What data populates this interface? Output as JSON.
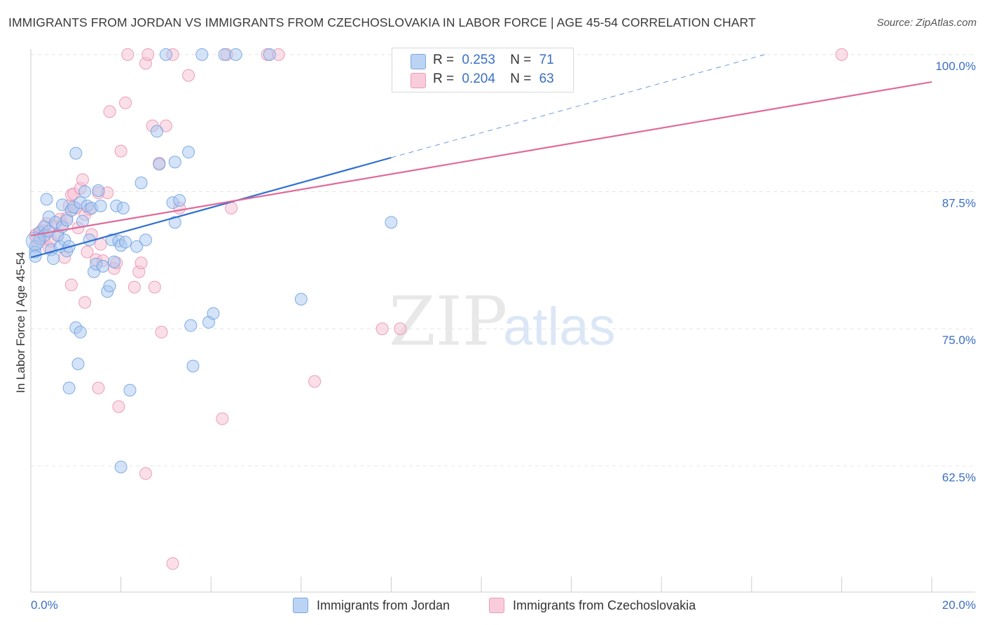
{
  "header": {
    "title": "IMMIGRANTS FROM JORDAN VS IMMIGRANTS FROM CZECHOSLOVAKIA IN LABOR FORCE | AGE 45-54 CORRELATION CHART",
    "source": "Source: ZipAtlas.com"
  },
  "watermark": {
    "zip": "ZIP",
    "atlas": "atlas"
  },
  "legend": {
    "r_label": "R =",
    "n_label": "N =",
    "series": [
      {
        "name": "Immigrants from Jordan",
        "r": "0.253",
        "n": "71"
      },
      {
        "name": "Immigrants from Czechoslovakia",
        "r": "0.204",
        "n": "63"
      }
    ]
  },
  "colors": {
    "blue_fill": "#a9c8f0",
    "blue_stroke": "#6b9fe0",
    "blue_line": "#2f6fd0",
    "pink_fill": "#f6bfd1",
    "pink_stroke": "#e98fb0",
    "pink_line": "#e06a98",
    "axis_text": "#3a6fc4",
    "grid": "#e4e4e4"
  },
  "chart_data": {
    "type": "scatter",
    "title": "IMMIGRANTS FROM JORDAN VS IMMIGRANTS FROM CZECHOSLOVAKIA IN LABOR FORCE | AGE 45-54 CORRELATION CHART",
    "xlabel": "",
    "ylabel": "In Labor Force | Age 45-54",
    "xlim": [
      0,
      20
    ],
    "ylim": [
      51,
      100.5
    ],
    "x_tick_labels": [
      "0.0%",
      "20.0%"
    ],
    "y_ticks": [
      62.5,
      75.0,
      87.5,
      100.0
    ],
    "y_tick_labels": [
      "62.5%",
      "75.0%",
      "87.5%",
      "100.0%"
    ],
    "series": [
      {
        "name": "Immigrants from Jordan",
        "trend": {
          "x0": 0.0,
          "y0": 81.5,
          "x1": 8.0,
          "y1": 90.6,
          "dash_to_x": 16.3,
          "dash_to_y": 100.0
        },
        "points": [
          [
            0.1,
            82.5
          ],
          [
            0.1,
            82.0
          ],
          [
            0.1,
            81.6
          ],
          [
            0.2,
            83.8
          ],
          [
            0.2,
            83.2
          ],
          [
            0.3,
            84.3
          ],
          [
            0.3,
            83.5
          ],
          [
            0.35,
            86.8
          ],
          [
            0.4,
            85.2
          ],
          [
            0.4,
            83.9
          ],
          [
            0.45,
            82.2
          ],
          [
            0.5,
            81.4
          ],
          [
            0.55,
            84.7
          ],
          [
            0.6,
            83.5
          ],
          [
            0.65,
            82.5
          ],
          [
            0.7,
            86.3
          ],
          [
            0.7,
            84.3
          ],
          [
            0.75,
            83.1
          ],
          [
            0.8,
            84.9
          ],
          [
            0.8,
            82.1
          ],
          [
            0.85,
            82.5
          ],
          [
            0.9,
            85.8
          ],
          [
            0.95,
            86.1
          ],
          [
            1.0,
            91.0
          ],
          [
            1.1,
            86.5
          ],
          [
            1.15,
            84.8
          ],
          [
            1.2,
            87.5
          ],
          [
            1.25,
            86.2
          ],
          [
            1.3,
            83.1
          ],
          [
            1.35,
            86.0
          ],
          [
            1.4,
            80.2
          ],
          [
            1.45,
            80.9
          ],
          [
            1.5,
            87.6
          ],
          [
            1.55,
            86.2
          ],
          [
            1.6,
            80.7
          ],
          [
            1.7,
            78.4
          ],
          [
            1.75,
            78.9
          ],
          [
            1.8,
            83.1
          ],
          [
            1.85,
            81.1
          ],
          [
            1.9,
            86.2
          ],
          [
            1.95,
            83.0
          ],
          [
            2.0,
            82.6
          ],
          [
            2.05,
            86.0
          ],
          [
            2.1,
            82.9
          ],
          [
            2.2,
            69.4
          ],
          [
            2.35,
            82.5
          ],
          [
            2.45,
            88.3
          ],
          [
            2.55,
            83.1
          ],
          [
            2.8,
            93.0
          ],
          [
            2.85,
            90.0
          ],
          [
            3.0,
            100.0
          ],
          [
            3.15,
            86.5
          ],
          [
            3.2,
            84.7
          ],
          [
            3.2,
            90.2
          ],
          [
            3.3,
            86.7
          ],
          [
            3.5,
            91.1
          ],
          [
            3.55,
            75.3
          ],
          [
            3.6,
            71.6
          ],
          [
            3.8,
            100.0
          ],
          [
            3.95,
            75.6
          ],
          [
            4.05,
            76.4
          ],
          [
            4.3,
            100.0
          ],
          [
            4.55,
            100.0
          ],
          [
            5.3,
            100.0
          ],
          [
            6.0,
            77.7
          ],
          [
            8.0,
            84.7
          ],
          [
            1.0,
            75.1
          ],
          [
            1.1,
            74.7
          ],
          [
            1.05,
            71.8
          ],
          [
            0.85,
            69.6
          ],
          [
            2.0,
            62.4
          ]
        ]
      },
      {
        "name": "Immigrants from Czechoslovakia",
        "trend": {
          "x0": 0.0,
          "y0": 83.5,
          "x1": 20.0,
          "y1": 97.5
        },
        "points": [
          [
            0.1,
            83.5
          ],
          [
            0.15,
            82.8
          ],
          [
            0.25,
            84.0
          ],
          [
            0.3,
            83.2
          ],
          [
            0.35,
            84.6
          ],
          [
            0.4,
            82.4
          ],
          [
            0.45,
            83.0
          ],
          [
            0.5,
            84.4
          ],
          [
            0.6,
            83.6
          ],
          [
            0.65,
            85.0
          ],
          [
            0.7,
            84.5
          ],
          [
            0.75,
            81.5
          ],
          [
            0.8,
            85.1
          ],
          [
            0.85,
            86.2
          ],
          [
            0.9,
            87.2
          ],
          [
            0.95,
            87.3
          ],
          [
            1.0,
            86.0
          ],
          [
            1.05,
            84.2
          ],
          [
            1.1,
            87.8
          ],
          [
            1.15,
            88.6
          ],
          [
            1.2,
            85.4
          ],
          [
            1.25,
            82.0
          ],
          [
            1.3,
            85.9
          ],
          [
            1.35,
            83.6
          ],
          [
            1.45,
            81.3
          ],
          [
            1.5,
            87.4
          ],
          [
            1.55,
            82.7
          ],
          [
            1.6,
            81.2
          ],
          [
            1.7,
            87.4
          ],
          [
            1.75,
            94.8
          ],
          [
            1.85,
            80.5
          ],
          [
            1.9,
            81.0
          ],
          [
            2.0,
            91.2
          ],
          [
            2.1,
            95.6
          ],
          [
            2.15,
            100.0
          ],
          [
            2.3,
            78.8
          ],
          [
            2.4,
            80.2
          ],
          [
            2.45,
            81.0
          ],
          [
            2.55,
            99.2
          ],
          [
            2.6,
            100.0
          ],
          [
            2.7,
            93.5
          ],
          [
            2.75,
            78.8
          ],
          [
            2.85,
            90.1
          ],
          [
            3.0,
            93.5
          ],
          [
            3.15,
            100.0
          ],
          [
            3.3,
            86.0
          ],
          [
            3.5,
            98.1
          ],
          [
            4.35,
            100.0
          ],
          [
            4.45,
            86.0
          ],
          [
            5.25,
            100.0
          ],
          [
            5.5,
            100.0
          ],
          [
            7.8,
            75.0
          ],
          [
            8.2,
            75.0
          ],
          [
            6.3,
            70.2
          ],
          [
            1.5,
            69.6
          ],
          [
            1.95,
            67.9
          ],
          [
            4.25,
            66.8
          ],
          [
            2.55,
            61.8
          ],
          [
            3.15,
            53.6
          ],
          [
            0.9,
            79.0
          ],
          [
            1.2,
            77.4
          ],
          [
            2.9,
            74.7
          ],
          [
            18.0,
            100.0
          ]
        ]
      }
    ]
  }
}
